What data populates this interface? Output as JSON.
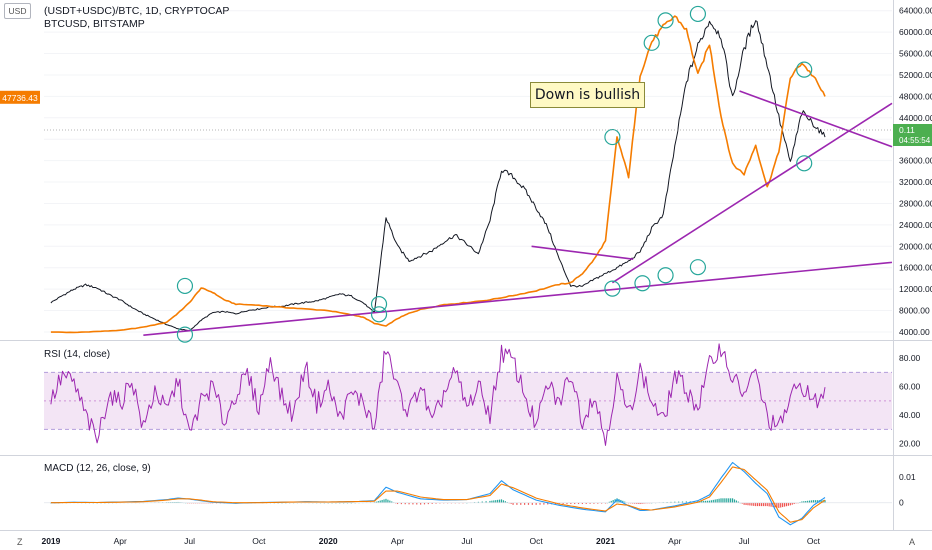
{
  "header": {
    "currency": "USD",
    "title": "(USDT+USDC)/BTC, 1D, CRYPTOCAP",
    "subtitle": "BTCUSD, BITSTAMP"
  },
  "annotation": {
    "text": "Down is bullish"
  },
  "price_labels": {
    "btc_last": "47736.43",
    "ratio_last": "0.11",
    "countdown": "04:55:54"
  },
  "corner_labels": {
    "left": "Z",
    "right": "A"
  },
  "colors": {
    "btc": "#131722",
    "ratio": "#f57c00",
    "trend": "#9c27b0",
    "rsi": "#9c27b0",
    "rsi_band": "#f3e5f5",
    "macd": "#2196f3",
    "signal": "#f57c00",
    "hist_up": "#26a69a",
    "hist_down": "#ef5350",
    "circle": "#26a69a",
    "ratio_tag": "#4caf50",
    "btc_tag": "#f57c00"
  },
  "chart_data": [
    {
      "type": "line",
      "title": "(USDT+USDC)/BTC, 1D, CRYPTOCAP",
      "y_ticks": [
        4000,
        8000,
        12000,
        16000,
        20000,
        24000,
        28000,
        32000,
        36000,
        40000,
        44000,
        48000,
        52000,
        56000,
        60000,
        64000
      ],
      "y_tick_labels": [
        "4000.00",
        "8000.00",
        "12000.00",
        "16000.00",
        "20000.00",
        "24000.00",
        "28000.00",
        "32000.00",
        "36000.00",
        "40000.00",
        "44000.00",
        "48000.00",
        "52000.00",
        "56000.00",
        "60000.00",
        "64000.00"
      ],
      "x_ticks": [
        "2019",
        "Apr",
        "Jul",
        "Oct",
        "2020",
        "Apr",
        "Jul",
        "Oct",
        "2021",
        "Apr",
        "Jul",
        "Oct"
      ],
      "x_tick_months": [
        0,
        3,
        6,
        9,
        12,
        15,
        18,
        21,
        24,
        27,
        30,
        33
      ],
      "xlim_months": [
        -0.3,
        36.4
      ],
      "ylim": [
        2500,
        66000
      ],
      "series": [
        {
          "name": "BTCUSD, BITSTAMP",
          "color": "#131722",
          "x_months": [
            0,
            0.5,
            1,
            1.5,
            2,
            2.5,
            3,
            3.5,
            4,
            4.5,
            5,
            5.5,
            6,
            6.5,
            7,
            7.5,
            8,
            8.5,
            9,
            9.5,
            10,
            10.5,
            11,
            11.5,
            12,
            12.5,
            13,
            13.5,
            14,
            14.5,
            15,
            15.5,
            16,
            16.5,
            17,
            17.5,
            18,
            18.5,
            19,
            19.5,
            20,
            20.5,
            21,
            21.5,
            22,
            22.5,
            23,
            23.5,
            24,
            24.5,
            25,
            25.5,
            26,
            26.5,
            27,
            27.5,
            28,
            28.5,
            29,
            29.5,
            30,
            30.5,
            31,
            31.5,
            32,
            32.5,
            33,
            33.5
          ],
          "values": [
            9500,
            10800,
            12000,
            12800,
            12200,
            11000,
            10000,
            8600,
            7400,
            6400,
            5400,
            4600,
            4200,
            6200,
            7600,
            7800,
            7400,
            8000,
            8300,
            8700,
            8800,
            9200,
            9500,
            9800,
            10400,
            11100,
            10700,
            9500,
            7600,
            25400,
            20000,
            17300,
            18200,
            19200,
            20800,
            22100,
            20400,
            18600,
            24800,
            34300,
            33000,
            30600,
            27200,
            23500,
            17600,
            12600,
            12500,
            13800,
            14900,
            16000,
            17200,
            19000,
            23300,
            25900,
            38500,
            50700,
            57400,
            62200,
            59300,
            47600,
            56900,
            62800,
            54000,
            44100,
            35600,
            45000,
            42900,
            40400
          ]
        },
        {
          "name": "(USDT+USDC)/BTC",
          "color": "#f57c00",
          "x_months": [
            0,
            1,
            2,
            3,
            4,
            5,
            5.5,
            6,
            6.5,
            7,
            7.5,
            8,
            9,
            10,
            11,
            12,
            13,
            13.5,
            14,
            14.5,
            15,
            15.5,
            16,
            17,
            18,
            19,
            20,
            21,
            22,
            22.5,
            23,
            23.5,
            24,
            24.5,
            25,
            25.5,
            26,
            26.5,
            27,
            27.5,
            28,
            28.5,
            29,
            29.5,
            30,
            30.5,
            31,
            31.5,
            32,
            32.5,
            33,
            33.5
          ],
          "values": [
            4000,
            3900,
            4100,
            4300,
            4900,
            5800,
            7500,
            9500,
            12200,
            11400,
            10000,
            9200,
            9000,
            8600,
            8300,
            8000,
            7200,
            6800,
            5600,
            5100,
            6500,
            7500,
            8200,
            9100,
            9500,
            10000,
            10800,
            11700,
            12900,
            13200,
            14900,
            17500,
            21000,
            40400,
            33000,
            52000,
            58200,
            61000,
            63000,
            60400,
            52000,
            57800,
            44300,
            35300,
            33500,
            38900,
            31000,
            37600,
            51500,
            54300,
            51700,
            48000
          ]
        }
      ],
      "trendlines": [
        {
          "x_months": [
            4,
            36.4
          ],
          "values": [
            3400,
            17000
          ]
        },
        {
          "x_months": [
            20.8,
            25.2
          ],
          "values": [
            20000,
            17600
          ]
        },
        {
          "x_months": [
            24.3,
            36.4
          ],
          "values": [
            13200,
            46700
          ]
        },
        {
          "x_months": [
            29.8,
            36.4
          ],
          "values": [
            49000,
            38600
          ]
        }
      ],
      "highlight_circles": [
        {
          "x_month": 5.8,
          "value": 12600
        },
        {
          "x_month": 5.8,
          "value": 3500
        },
        {
          "x_month": 14.2,
          "value": 9200
        },
        {
          "x_month": 14.2,
          "value": 7300
        },
        {
          "x_month": 24.3,
          "value": 12100
        },
        {
          "x_month": 25.6,
          "value": 13100
        },
        {
          "x_month": 26.6,
          "value": 14600
        },
        {
          "x_month": 28.0,
          "value": 16100
        },
        {
          "x_month": 24.3,
          "value": 40400
        },
        {
          "x_month": 26.0,
          "value": 58000
        },
        {
          "x_month": 26.6,
          "value": 62200
        },
        {
          "x_month": 28.0,
          "value": 63400
        },
        {
          "x_month": 32.6,
          "value": 53000
        },
        {
          "x_month": 32.6,
          "value": 35500
        }
      ]
    },
    {
      "type": "line",
      "title": "RSI (14, close)",
      "y_ticks": [
        20,
        40,
        60,
        80
      ],
      "y_tick_labels": [
        "20.00",
        "40.00",
        "60.00",
        "80.00"
      ],
      "ylim": [
        12,
        92
      ],
      "band": [
        30,
        70
      ],
      "series": [
        {
          "name": "RSI",
          "color": "#9c27b0",
          "x_months": [
            0,
            0.5,
            1,
            1.5,
            2,
            2.5,
            3,
            3.5,
            4,
            4.5,
            5,
            5.5,
            6,
            6.5,
            7,
            7.5,
            8,
            8.5,
            9,
            9.5,
            10,
            10.5,
            11,
            11.5,
            12,
            12.5,
            13,
            13.5,
            14,
            14.5,
            15,
            15.5,
            16,
            16.5,
            17,
            17.5,
            18,
            18.5,
            19,
            19.5,
            20,
            20.5,
            21,
            21.5,
            22,
            22.5,
            23,
            23.5,
            24,
            24.5,
            25,
            25.5,
            26,
            26.5,
            27,
            27.5,
            28,
            28.5,
            29,
            29.5,
            30,
            30.5,
            31,
            31.5,
            32,
            32.5,
            33,
            33.5
          ],
          "values": [
            50,
            68,
            62,
            40,
            22,
            55,
            48,
            66,
            30,
            58,
            42,
            65,
            25,
            50,
            60,
            35,
            55,
            68,
            45,
            80,
            52,
            40,
            75,
            48,
            60,
            38,
            55,
            50,
            30,
            88,
            58,
            42,
            62,
            33,
            55,
            70,
            45,
            60,
            40,
            84,
            78,
            55,
            32,
            62,
            48,
            70,
            36,
            55,
            22,
            65,
            40,
            72,
            50,
            35,
            68,
            58,
            45,
            75,
            88,
            66,
            55,
            70,
            38,
            30,
            52,
            62,
            48,
            55
          ]
        }
      ]
    },
    {
      "type": "line",
      "title": "MACD (12, 26, close, 9)",
      "y_ticks": [
        0,
        0.01
      ],
      "y_tick_labels": [
        "0",
        "0.01"
      ],
      "ylim": [
        -0.0105,
        0.018
      ],
      "series": [
        {
          "name": "MACD",
          "color": "#2196f3",
          "x_months": [
            0,
            1,
            2,
            3,
            4,
            5,
            5.5,
            6,
            6.5,
            7,
            8,
            9,
            10,
            11,
            12,
            13,
            14,
            14.5,
            15,
            16,
            17,
            18,
            19,
            19.5,
            20,
            21,
            22,
            23,
            24,
            24.5,
            25,
            25.5,
            26,
            27,
            28,
            28.5,
            29,
            29.5,
            30,
            30.5,
            31,
            31.5,
            32,
            32.5,
            33,
            33.5
          ],
          "values": [
            0,
            0.0002,
            0.0001,
            0.0003,
            0.0005,
            0.0012,
            0.0018,
            0.0014,
            0.0008,
            0.0002,
            -0.0002,
            0.0001,
            0.0002,
            0.0004,
            0.0003,
            0.0004,
            0.0008,
            0.006,
            0.004,
            0.0015,
            0.001,
            0.0012,
            0.0035,
            0.0085,
            0.005,
            0.001,
            -0.001,
            -0.0025,
            -0.0035,
            0.0012,
            -0.0012,
            -0.003,
            -0.0028,
            -0.0012,
            0.0008,
            0.003,
            0.0095,
            0.0155,
            0.012,
            0.0075,
            0.0035,
            -0.0055,
            -0.0085,
            -0.006,
            -0.001,
            0.002
          ]
        },
        {
          "name": "Signal",
          "color": "#f57c00",
          "x_months": [
            0,
            1,
            2,
            3,
            4,
            5,
            5.5,
            6,
            6.5,
            7,
            8,
            9,
            10,
            11,
            12,
            13,
            14,
            14.5,
            15,
            16,
            17,
            18,
            19,
            19.5,
            20,
            21,
            22,
            23,
            24,
            24.5,
            25,
            25.5,
            26,
            27,
            28,
            28.5,
            29,
            29.5,
            30,
            30.5,
            31,
            31.5,
            32,
            32.5,
            33,
            33.5
          ],
          "values": [
            0,
            0.0001,
            0.0001,
            0.0002,
            0.0004,
            0.001,
            0.0015,
            0.0015,
            0.001,
            0.0004,
            0,
            0,
            0.0002,
            0.0003,
            0.0003,
            0.0004,
            0.0006,
            0.0045,
            0.0045,
            0.0022,
            0.0012,
            0.0012,
            0.0028,
            0.0072,
            0.0058,
            0.0018,
            -0.0005,
            -0.002,
            -0.0032,
            -0.0005,
            -0.001,
            -0.0025,
            -0.0028,
            -0.0016,
            0.0002,
            0.0022,
            0.0078,
            0.0138,
            0.0128,
            0.0088,
            0.0048,
            -0.0035,
            -0.0075,
            -0.0065,
            -0.002,
            0.001
          ]
        }
      ]
    }
  ]
}
